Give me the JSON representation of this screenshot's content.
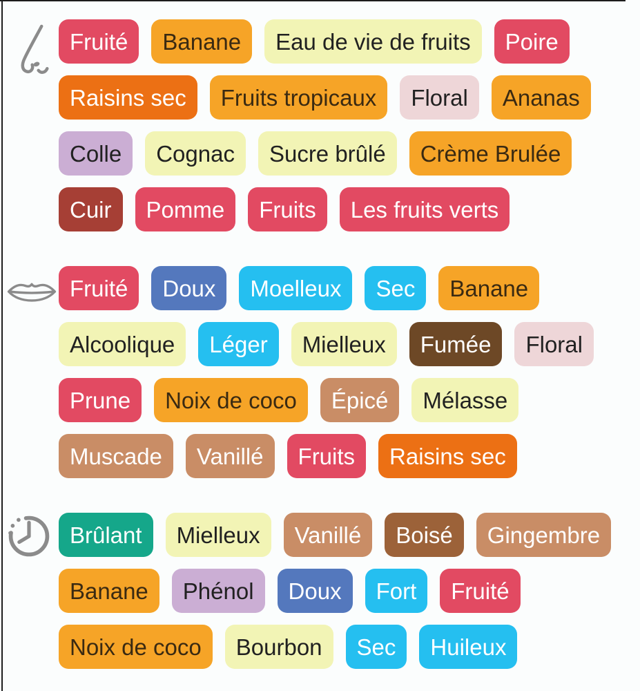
{
  "palette": {
    "pink": {
      "bg": "#e24a62",
      "fg": "#ffffff"
    },
    "orange": {
      "bg": "#f6a427",
      "fg": "#3a2a12"
    },
    "paleYellow": {
      "bg": "#f2f4b5",
      "fg": "#212121"
    },
    "darkOrange": {
      "bg": "#ec7014",
      "fg": "#ffffff"
    },
    "palePink": {
      "bg": "#eed6d8",
      "fg": "#212121"
    },
    "lilac": {
      "bg": "#cbaed4",
      "fg": "#212121"
    },
    "brickRed": {
      "bg": "#a63f35",
      "fg": "#ffffff"
    },
    "blue": {
      "bg": "#5478bd",
      "fg": "#ffffff"
    },
    "cyan": {
      "bg": "#25bff0",
      "fg": "#ffffff"
    },
    "darkBrown": {
      "bg": "#6d4826",
      "fg": "#ffffff"
    },
    "tan": {
      "bg": "#c98d66",
      "fg": "#ffffff"
    },
    "medBrown": {
      "bg": "#9c6239",
      "fg": "#ffffff"
    },
    "teal": {
      "bg": "#15a78a",
      "fg": "#ffffff"
    }
  },
  "icon_color": "#8b8b8b",
  "sections": [
    {
      "id": "nose",
      "icon": "nose-icon",
      "rows": [
        [
          {
            "label": "Fruité",
            "color": "pink"
          },
          {
            "label": "Banane",
            "color": "orange"
          },
          {
            "label": "Eau de vie de fruits",
            "color": "paleYellow"
          },
          {
            "label": "Poire",
            "color": "pink"
          }
        ],
        [
          {
            "label": "Raisins sec",
            "color": "darkOrange"
          },
          {
            "label": "Fruits tropicaux",
            "color": "orange"
          },
          {
            "label": "Floral",
            "color": "palePink"
          },
          {
            "label": "Ananas",
            "color": "orange"
          }
        ],
        [
          {
            "label": "Colle",
            "color": "lilac"
          },
          {
            "label": "Cognac",
            "color": "paleYellow"
          },
          {
            "label": "Sucre brûlé",
            "color": "paleYellow"
          },
          {
            "label": "Crème Brulée",
            "color": "orange"
          }
        ],
        [
          {
            "label": "Cuir",
            "color": "brickRed"
          },
          {
            "label": "Pomme",
            "color": "pink"
          },
          {
            "label": "Fruits",
            "color": "pink"
          },
          {
            "label": "Les fruits verts",
            "color": "pink"
          }
        ]
      ]
    },
    {
      "id": "palate",
      "icon": "mouth-icon",
      "rows": [
        [
          {
            "label": "Fruité",
            "color": "pink"
          },
          {
            "label": "Doux",
            "color": "blue"
          },
          {
            "label": "Moelleux",
            "color": "cyan"
          },
          {
            "label": "Sec",
            "color": "cyan"
          },
          {
            "label": "Banane",
            "color": "orange"
          }
        ],
        [
          {
            "label": "Alcoolique",
            "color": "paleYellow"
          },
          {
            "label": "Léger",
            "color": "cyan"
          },
          {
            "label": "Mielleux",
            "color": "paleYellow"
          },
          {
            "label": "Fumée",
            "color": "darkBrown"
          },
          {
            "label": "Floral",
            "color": "palePink"
          }
        ],
        [
          {
            "label": "Prune",
            "color": "pink"
          },
          {
            "label": "Noix de coco",
            "color": "orange"
          },
          {
            "label": "Épicé",
            "color": "tan"
          },
          {
            "label": "Mélasse",
            "color": "paleYellow"
          }
        ],
        [
          {
            "label": "Muscade",
            "color": "tan"
          },
          {
            "label": "Vanillé",
            "color": "tan"
          },
          {
            "label": "Fruits",
            "color": "pink"
          },
          {
            "label": "Raisins sec",
            "color": "darkOrange"
          }
        ]
      ]
    },
    {
      "id": "finish",
      "icon": "finish-clock-icon",
      "rows": [
        [
          {
            "label": "Brûlant",
            "color": "teal"
          },
          {
            "label": "Mielleux",
            "color": "paleYellow"
          },
          {
            "label": "Vanillé",
            "color": "tan"
          },
          {
            "label": "Boisé",
            "color": "medBrown"
          },
          {
            "label": "Gingembre",
            "color": "tan"
          }
        ],
        [
          {
            "label": "Banane",
            "color": "orange"
          },
          {
            "label": "Phénol",
            "color": "lilac"
          },
          {
            "label": "Doux",
            "color": "blue"
          },
          {
            "label": "Fort",
            "color": "cyan"
          },
          {
            "label": "Fruité",
            "color": "pink"
          }
        ],
        [
          {
            "label": "Noix de coco",
            "color": "orange"
          },
          {
            "label": "Bourbon",
            "color": "paleYellow"
          },
          {
            "label": "Sec",
            "color": "cyan"
          },
          {
            "label": "Huileux",
            "color": "cyan"
          }
        ]
      ]
    }
  ]
}
